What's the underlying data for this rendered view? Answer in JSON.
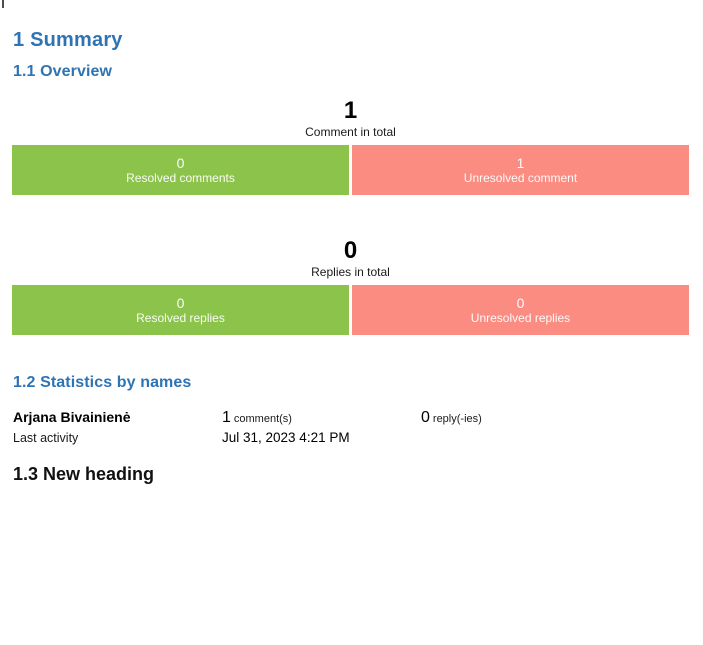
{
  "page": {
    "headings": {
      "summary": "1 Summary",
      "overview": "1.1 Overview",
      "statistics": "1.2 Statistics by names",
      "new_heading": "1.3 New heading"
    },
    "colors": {
      "heading_blue": "#2E74B5",
      "resolved_green": "#8CC44B",
      "unresolved_red": "#FA8C82",
      "bar_text": "#FFFFFF"
    }
  },
  "charts": {
    "comments": {
      "total": "1",
      "total_label": "Comment in total",
      "resolved_value": "0",
      "resolved_label": "Resolved comments",
      "unresolved_value": "1",
      "unresolved_label": "Unresolved comment"
    },
    "replies": {
      "total": "0",
      "total_label": "Replies in total",
      "resolved_value": "0",
      "resolved_label": "Resolved replies",
      "unresolved_value": "0",
      "unresolved_label": "Unresolved replies"
    }
  },
  "statistics": {
    "name": "Arjana Bivainienė",
    "last_activity_label": "Last activity",
    "comment_count": "1",
    "comment_unit": "comment(s)",
    "last_activity_value": "Jul 31, 2023 4:21 PM",
    "reply_count": "0",
    "reply_unit": "reply(-ies)"
  },
  "chart_data": [
    {
      "type": "bar",
      "title": "1",
      "subtitle": "Comment in total",
      "categories": [
        "Resolved comments",
        "Unresolved comment"
      ],
      "values": [
        0,
        1
      ],
      "colors": [
        "#8CC44B",
        "#FA8C82"
      ],
      "legend_position": "inside-bars",
      "layout": "two equal-width horizontal segments"
    },
    {
      "type": "bar",
      "title": "0",
      "subtitle": "Replies in total",
      "categories": [
        "Resolved replies",
        "Unresolved replies"
      ],
      "values": [
        0,
        0
      ],
      "colors": [
        "#8CC44B",
        "#FA8C82"
      ],
      "legend_position": "inside-bars",
      "layout": "two equal-width horizontal segments"
    }
  ]
}
